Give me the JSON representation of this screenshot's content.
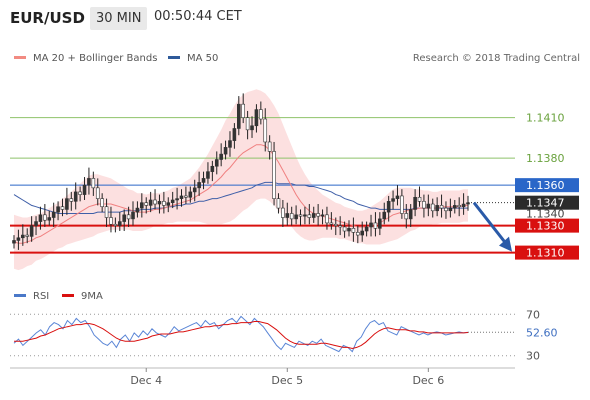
{
  "header": {
    "symbol": "EUR/USD",
    "timeframe": "30 MIN",
    "time": "00:50:44 CET"
  },
  "chart_data": [
    {
      "type": "candlestick",
      "title": "EUR/USD",
      "legend": [
        {
          "name": "MA 20 + Bollinger Bands",
          "color": "#f28b82"
        },
        {
          "name": "MA 50",
          "color": "#2e5a9a"
        }
      ],
      "credit": "Research © 2018 Trading Central",
      "ylim": [
        1.1306,
        1.1432
      ],
      "last_price": 1.1347,
      "last_price_label": "1.1347",
      "current_price_label": "1.1340",
      "levels": [
        {
          "label": "1.1410",
          "value": 1.141,
          "kind": "resistance",
          "color": "#8ec26a"
        },
        {
          "label": "1.1380",
          "value": 1.138,
          "kind": "resistance",
          "color": "#8ec26a"
        },
        {
          "label": "1.1360",
          "value": 1.136,
          "kind": "pivot",
          "color": "#2a66c8"
        },
        {
          "label": "1.1330",
          "value": 1.133,
          "kind": "support",
          "color": "#d9100f"
        },
        {
          "label": "1.1310",
          "value": 1.131,
          "kind": "support",
          "color": "#d9100f"
        }
      ],
      "forecast_arrow": {
        "from": 1.1347,
        "to": 1.131,
        "color": "#2a5aa8"
      },
      "closes": [
        1.1319,
        1.1321,
        1.1323,
        1.1322,
        1.133,
        1.1333,
        1.1338,
        1.1334,
        1.1336,
        1.134,
        1.1344,
        1.1342,
        1.135,
        1.1348,
        1.1355,
        1.1353,
        1.136,
        1.1365,
        1.1358,
        1.135,
        1.1344,
        1.1336,
        1.1331,
        1.133,
        1.1333,
        1.1338,
        1.1335,
        1.134,
        1.1343,
        1.1347,
        1.1345,
        1.1349,
        1.1346,
        1.1348,
        1.1345,
        1.1347,
        1.1349,
        1.135,
        1.1352,
        1.1351,
        1.1355,
        1.1358,
        1.1362,
        1.1365,
        1.137,
        1.1374,
        1.1379,
        1.1383,
        1.1388,
        1.1393,
        1.1402,
        1.142,
        1.141,
        1.1401,
        1.1404,
        1.1416,
        1.1409,
        1.1392,
        1.1385,
        1.135,
        1.1343,
        1.1336,
        1.1339,
        1.1335,
        1.1338,
        1.1337,
        1.1338,
        1.1336,
        1.1339,
        1.1337,
        1.1338,
        1.1332,
        1.1331,
        1.133,
        1.1329,
        1.1326,
        1.1328,
        1.1325,
        1.1323,
        1.1326,
        1.1329,
        1.1332,
        1.1328,
        1.1335,
        1.134,
        1.1348,
        1.135,
        1.1352,
        1.1339,
        1.1335,
        1.1342,
        1.1351,
        1.1348,
        1.1343,
        1.1346,
        1.1341,
        1.1345,
        1.1343,
        1.1341,
        1.1343,
        1.1345,
        1.1344,
        1.1346,
        1.1347
      ],
      "ma20": [
        1.1318,
        1.1317,
        1.1317,
        1.1318,
        1.1319,
        1.1321,
        1.1322,
        1.1324,
        1.1326,
        1.1328,
        1.133,
        1.1332,
        1.1334,
        1.1336,
        1.1338,
        1.134,
        1.1342,
        1.1344,
        1.1345,
        1.1346,
        1.1346,
        1.1346,
        1.1346,
        1.1345,
        1.1344,
        1.1343,
        1.1342,
        1.1341,
        1.134,
        1.134,
        1.134,
        1.1341,
        1.1342,
        1.1342,
        1.1343,
        1.1344,
        1.1345,
        1.1346,
        1.1347,
        1.1348,
        1.1349,
        1.1351,
        1.1353,
        1.1355,
        1.1357,
        1.136,
        1.1363,
        1.1366,
        1.137,
        1.1373,
        1.1377,
        1.1381,
        1.1384,
        1.1386,
        1.1388,
        1.139,
        1.139,
        1.1389,
        1.1386,
        1.1382,
        1.1377,
        1.1371,
        1.1365,
        1.1359,
        1.1353,
        1.1348,
        1.1344,
        1.1341,
        1.1339,
        1.1338,
        1.1337,
        1.1336,
        1.1335,
        1.1334,
        1.1333,
        1.1332,
        1.1331,
        1.133,
        1.1329,
        1.1329,
        1.1329,
        1.133,
        1.1331,
        1.1332,
        1.1334,
        1.1336,
        1.1338,
        1.1339,
        1.134,
        1.1341,
        1.1342,
        1.1342,
        1.1343,
        1.1343,
        1.1343,
        1.1343,
        1.1343,
        1.1344,
        1.1344,
        1.1344,
        1.1344,
        1.1344,
        1.1345,
        1.1345
      ],
      "ma50": [
        1.1353,
        1.1351,
        1.1349,
        1.1347,
        1.1345,
        1.1344,
        1.1343,
        1.1342,
        1.1341,
        1.134,
        1.1339,
        1.1339,
        1.1339,
        1.1339,
        1.1339,
        1.1339,
        1.1339,
        1.1339,
        1.1339,
        1.134,
        1.134,
        1.134,
        1.134,
        1.134,
        1.134,
        1.1341,
        1.1341,
        1.1341,
        1.1341,
        1.1342,
        1.1342,
        1.1342,
        1.1343,
        1.1343,
        1.1343,
        1.1344,
        1.1344,
        1.1345,
        1.1345,
        1.1346,
        1.1346,
        1.1347,
        1.1348,
        1.1348,
        1.1349,
        1.135,
        1.135,
        1.1351,
        1.1352,
        1.1353,
        1.1354,
        1.1355,
        1.1356,
        1.1357,
        1.1358,
        1.136,
        1.1361,
        1.1362,
        1.1362,
        1.1362,
        1.1361,
        1.1361,
        1.1361,
        1.1361,
        1.136,
        1.136,
        1.136,
        1.1359,
        1.1359,
        1.1358,
        1.1357,
        1.1356,
        1.1355,
        1.1353,
        1.1352,
        1.135,
        1.1349,
        1.1348,
        1.1346,
        1.1345,
        1.1344,
        1.1343,
        1.1343,
        1.1342,
        1.1342,
        1.1342,
        1.1342,
        1.1342,
        1.1342,
        1.1342,
        1.1342,
        1.1343,
        1.1343,
        1.1343,
        1.1343,
        1.1343,
        1.1343,
        1.1343,
        1.1343,
        1.1343,
        1.1343,
        1.1343,
        1.1343,
        1.1343
      ],
      "band_width": [
        0.002,
        0.002,
        0.0019,
        0.0018,
        0.0018,
        0.0017,
        0.0017,
        0.0017,
        0.0017,
        0.0017,
        0.0017,
        0.0018,
        0.0018,
        0.0019,
        0.002,
        0.0021,
        0.0022,
        0.0023,
        0.0023,
        0.0022,
        0.0021,
        0.002,
        0.0019,
        0.0018,
        0.0017,
        0.0016,
        0.0015,
        0.0015,
        0.0014,
        0.0014,
        0.0013,
        0.0013,
        0.0012,
        0.0012,
        0.0012,
        0.0012,
        0.0013,
        0.0013,
        0.0014,
        0.0015,
        0.0016,
        0.0018,
        0.002,
        0.0023,
        0.0026,
        0.0029,
        0.0032,
        0.0035,
        0.0038,
        0.004,
        0.0042,
        0.0043,
        0.0043,
        0.0043,
        0.0042,
        0.0041,
        0.004,
        0.0039,
        0.0038,
        0.0037,
        0.0036,
        0.0034,
        0.0032,
        0.003,
        0.0028,
        0.0026,
        0.0024,
        0.0022,
        0.002,
        0.0018,
        0.0016,
        0.0015,
        0.0014,
        0.0013,
        0.0013,
        0.0012,
        0.0012,
        0.0012,
        0.0012,
        0.0012,
        0.0013,
        0.0014,
        0.0015,
        0.0016,
        0.0017,
        0.0018,
        0.0019,
        0.0019,
        0.0018,
        0.0017,
        0.0016,
        0.0015,
        0.0014,
        0.0013,
        0.0013,
        0.0012,
        0.0012,
        0.0012,
        0.0012,
        0.0012,
        0.0012,
        0.0012,
        0.0012,
        0.0012
      ],
      "x_ticks": [
        {
          "label": "Dec 4",
          "index": 30
        },
        {
          "label": "Dec 5",
          "index": 62
        },
        {
          "label": "Dec 6",
          "index": 94
        }
      ]
    },
    {
      "type": "line",
      "legend": [
        {
          "name": "RSI",
          "color": "#4a78c8"
        },
        {
          "name": "9MA",
          "color": "#d9100f"
        }
      ],
      "ylim": [
        22,
        78
      ],
      "y_ticks": [
        {
          "label": "70",
          "value": 70
        },
        {
          "label": "30",
          "value": 30
        }
      ],
      "rsi_label": "52.60",
      "rsi_value": 52.6,
      "rsi": [
        42,
        46,
        40,
        44,
        48,
        52,
        55,
        50,
        58,
        62,
        60,
        56,
        64,
        60,
        66,
        62,
        64,
        58,
        50,
        46,
        42,
        40,
        44,
        38,
        46,
        50,
        44,
        52,
        48,
        54,
        50,
        56,
        52,
        50,
        48,
        52,
        58,
        54,
        56,
        58,
        60,
        62,
        58,
        64,
        60,
        62,
        56,
        60,
        64,
        66,
        62,
        68,
        64,
        60,
        66,
        62,
        58,
        52,
        46,
        40,
        36,
        42,
        40,
        38,
        44,
        42,
        40,
        44,
        42,
        46,
        40,
        38,
        36,
        34,
        40,
        38,
        34,
        44,
        48,
        56,
        62,
        64,
        60,
        62,
        54,
        52,
        50,
        58,
        56,
        54,
        52,
        50,
        52,
        50,
        52,
        53,
        52,
        50,
        51,
        52,
        53,
        52,
        52.6
      ],
      "ma9": [
        44,
        44,
        44,
        45,
        46,
        47,
        49,
        50,
        52,
        54,
        56,
        57,
        58,
        59,
        60,
        60,
        61,
        61,
        60,
        58,
        56,
        53,
        50,
        47,
        45,
        44,
        44,
        44,
        45,
        46,
        47,
        49,
        50,
        51,
        51,
        51,
        52,
        53,
        53,
        54,
        55,
        56,
        57,
        58,
        58,
        59,
        59,
        60,
        60,
        61,
        61,
        62,
        62,
        62,
        63,
        63,
        62,
        61,
        58,
        55,
        51,
        47,
        44,
        42,
        41,
        41,
        41,
        41,
        41,
        42,
        42,
        41,
        40,
        39,
        38,
        38,
        37,
        38,
        40,
        43,
        47,
        51,
        54,
        56,
        57,
        56,
        55,
        55,
        55,
        54,
        54,
        53,
        53,
        52,
        52,
        52,
        52,
        52,
        52,
        52,
        52,
        52,
        52.4
      ]
    }
  ]
}
